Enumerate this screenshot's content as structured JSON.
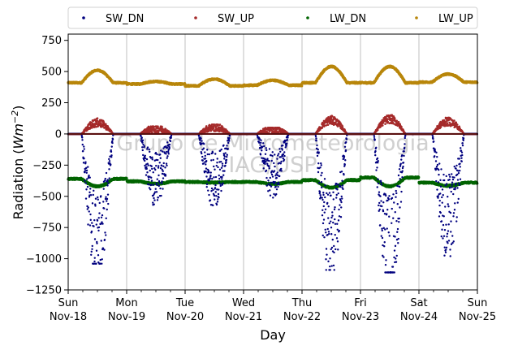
{
  "chart_data": {
    "type": "scatter",
    "watermark": [
      "Grupo de Micrometeorologia",
      "IAG/USP"
    ],
    "xlabel": "Day",
    "ylabel": "Radiation (Wm⁻²)",
    "ylim": [
      -1250,
      800
    ],
    "yticks": [
      -1250,
      -1000,
      -750,
      -500,
      -250,
      0,
      250,
      500,
      750
    ],
    "xlim": [
      "2018-11-18",
      "2018-11-25"
    ],
    "xticks": [
      {
        "date": "2018-11-18",
        "day": "Sun",
        "date_label": "Nov-18"
      },
      {
        "date": "2018-11-19",
        "day": "Mon",
        "date_label": "Nov-19"
      },
      {
        "date": "2018-11-20",
        "day": "Tue",
        "date_label": "Nov-20"
      },
      {
        "date": "2018-11-21",
        "day": "Wed",
        "date_label": "Nov-21"
      },
      {
        "date": "2018-11-22",
        "day": "Thu",
        "date_label": "Nov-22"
      },
      {
        "date": "2018-11-23",
        "day": "Fri",
        "date_label": "Nov-23"
      },
      {
        "date": "2018-11-24",
        "day": "Sat",
        "date_label": "Nov-24"
      },
      {
        "date": "2018-11-25",
        "day": "Sun",
        "date_label": "Nov-25"
      }
    ],
    "grid": "vertical",
    "legend_placement": "top-center",
    "series": [
      {
        "name": "SW_DN",
        "color": "#00007f",
        "daily_min": [
          -1040,
          -590,
          -610,
          -520,
          -1090,
          -1110,
          -980
        ],
        "daily_mean_peak": [
          -800,
          -350,
          -350,
          -300,
          -800,
          -850,
          -650
        ]
      },
      {
        "name": "SW_UP",
        "color": "#a52a2a",
        "daily_max": [
          130,
          60,
          75,
          50,
          150,
          160,
          130
        ],
        "daily_mean_peak": [
          90,
          45,
          55,
          40,
          110,
          120,
          100
        ]
      },
      {
        "name": "LW_DN",
        "color": "#006400",
        "daily_night": [
          -360,
          -380,
          -385,
          -385,
          -370,
          -350,
          -390
        ],
        "daily_day": [
          -420,
          -400,
          -390,
          -400,
          -430,
          -420,
          -415
        ]
      },
      {
        "name": "LW_UP",
        "color": "#b8860b",
        "daily_night": [
          410,
          400,
          385,
          390,
          410,
          410,
          415
        ],
        "daily_day": [
          510,
          420,
          440,
          430,
          540,
          540,
          480
        ]
      }
    ]
  }
}
